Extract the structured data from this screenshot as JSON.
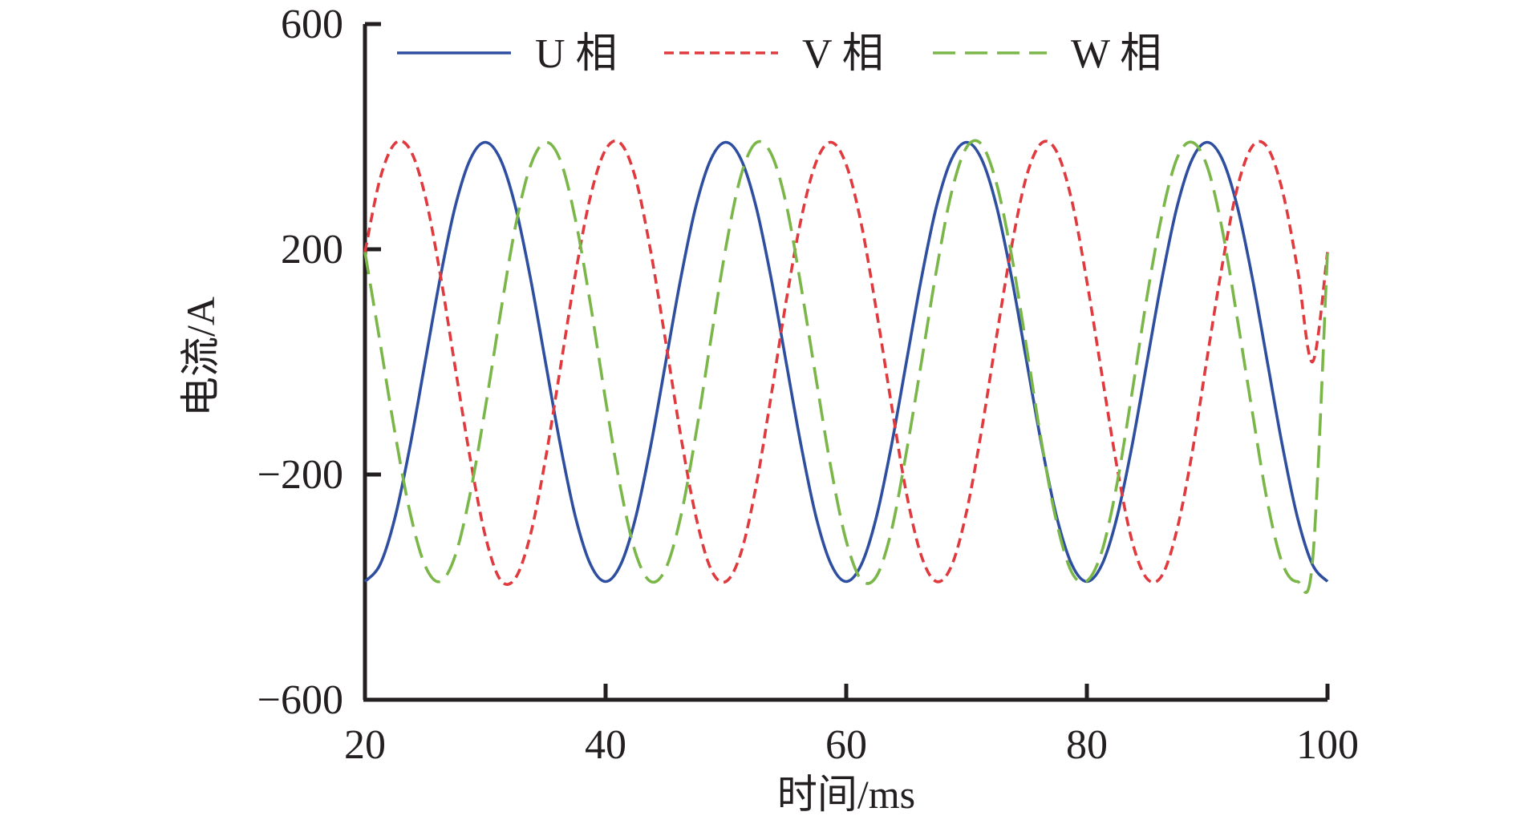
{
  "chart_data": {
    "type": "line",
    "xlabel": "时间/ms",
    "ylabel": "电流/A",
    "xlim": [
      20,
      100
    ],
    "ylim": [
      -600,
      600
    ],
    "xticks": [
      20,
      40,
      60,
      80,
      100
    ],
    "yticks": [
      -600,
      -200,
      200,
      600
    ],
    "xtick_labels": [
      "20",
      "40",
      "60",
      "80",
      "100"
    ],
    "ytick_labels": [
      "−600",
      "−200",
      "200",
      "600"
    ],
    "grid": false,
    "legend_position": "top",
    "series": [
      {
        "name": "U 相",
        "color": "#2e4fa0",
        "style": "solid",
        "x": [
          20,
          21.25,
          22.5,
          23.75,
          25,
          26.25,
          27.5,
          28.75,
          30,
          31.25,
          32.5,
          33.75,
          35,
          36.25,
          37.5,
          38.75,
          40,
          41.25,
          42.5,
          43.75,
          45,
          46.25,
          47.5,
          48.75,
          50,
          51.25,
          52.5,
          53.75,
          55,
          56.25,
          57.5,
          58.75,
          60,
          61.25,
          62.5,
          63.75,
          65,
          66.25,
          67.5,
          68.75,
          70,
          71.25,
          72.5,
          73.75,
          75,
          76.25,
          77.5,
          78.75,
          80,
          81.25,
          82.5,
          83.75,
          85,
          86.25,
          87.5,
          88.75,
          90,
          91.25,
          92.5,
          93.75,
          95,
          96.25,
          97.5,
          98.75,
          100
        ],
        "y": [
          -390,
          -360,
          -276,
          -149,
          0,
          149,
          276,
          360,
          390,
          360,
          276,
          149,
          0,
          -149,
          -276,
          -360,
          -390,
          -360,
          -276,
          -149,
          0,
          149,
          276,
          360,
          390,
          360,
          276,
          149,
          0,
          -149,
          -276,
          -360,
          -390,
          -360,
          -276,
          -149,
          0,
          149,
          276,
          360,
          390,
          360,
          276,
          149,
          0,
          -149,
          -276,
          -360,
          -390,
          -360,
          -276,
          -149,
          0,
          149,
          276,
          360,
          390,
          360,
          276,
          149,
          0,
          -149,
          -276,
          -360,
          -390
        ]
      },
      {
        "name": "V 相",
        "color": "#e03a3e",
        "style": "short-dash",
        "x": [
          20,
          21.25,
          22.5,
          23.75,
          25,
          26.25,
          27.5,
          28.75,
          30,
          31.25,
          32.5,
          33.75,
          35,
          36.25,
          37.5,
          38.75,
          40,
          41.25,
          42.5,
          43.75,
          45,
          46.25,
          47.5,
          48.75,
          50,
          51.25,
          52.5,
          53.75,
          55,
          56.25,
          57.5,
          58.75,
          60,
          61.25,
          62.5,
          63.75,
          65,
          66.25,
          67.5,
          68.75,
          70,
          71.25,
          72.5,
          73.75,
          75,
          76.25,
          77.5,
          78.75,
          80,
          81.25,
          82.5,
          83.75,
          85,
          86.25,
          87.5,
          88.75,
          90,
          91.25,
          92.5,
          93.75,
          95,
          96.25,
          97.5,
          98.75,
          100
        ],
        "y": [
          195,
          325,
          388,
          377,
          295,
          156,
          -10,
          -172,
          -309,
          -387,
          -384,
          -307,
          -173,
          -9,
          157,
          295,
          377,
          388,
          325,
          196,
          35,
          -132,
          -274,
          -368,
          -390,
          -339,
          -221,
          -61,
          107,
          254,
          355,
          390,
          350,
          245,
          92,
          -75,
          -233,
          -345,
          -390,
          -362,
          -266,
          -121,
          46,
          206,
          331,
          389,
          373,
          286,
          143,
          -23,
          -186,
          -318,
          -385,
          -379,
          -297,
          -161,
          8,
          172,
          309,
          383,
          381,
          304,
          166,
          0,
          195
        ]
      },
      {
        "name": "W 相",
        "color": "#7ab648",
        "style": "long-dash",
        "x": [
          20,
          21.25,
          22.5,
          23.75,
          25,
          26.25,
          27.5,
          28.75,
          30,
          31.25,
          32.5,
          33.75,
          35,
          36.25,
          37.5,
          38.75,
          40,
          41.25,
          42.5,
          43.75,
          45,
          46.25,
          47.5,
          48.75,
          50,
          51.25,
          52.5,
          53.75,
          55,
          56.25,
          57.5,
          58.75,
          60,
          61.25,
          62.5,
          63.75,
          65,
          66.25,
          67.5,
          68.75,
          70,
          71.25,
          72.5,
          73.75,
          75,
          76.25,
          77.5,
          78.75,
          80,
          81.25,
          82.5,
          83.75,
          85,
          86.25,
          87.5,
          88.75,
          90,
          91.25,
          92.5,
          93.75,
          95,
          96.25,
          97.5,
          98.75,
          100
        ],
        "y": [
          195,
          35,
          -127,
          -268,
          -362,
          -390,
          -344,
          -233,
          -82,
          85,
          240,
          348,
          390,
          357,
          252,
          101,
          -68,
          -225,
          -340,
          -390,
          -367,
          -274,
          -129,
          40,
          204,
          331,
          389,
          370,
          281,
          133,
          -31,
          -191,
          -318,
          -387,
          -381,
          -300,
          -160,
          0,
          163,
          301,
          381,
          386,
          316,
          188,
          24,
          -145,
          -286,
          -374,
          -389,
          -336,
          -217,
          -55,
          116,
          262,
          362,
          390,
          347,
          235,
          77,
          -89,
          -248,
          -358,
          -390,
          -355,
          195
        ]
      }
    ]
  }
}
